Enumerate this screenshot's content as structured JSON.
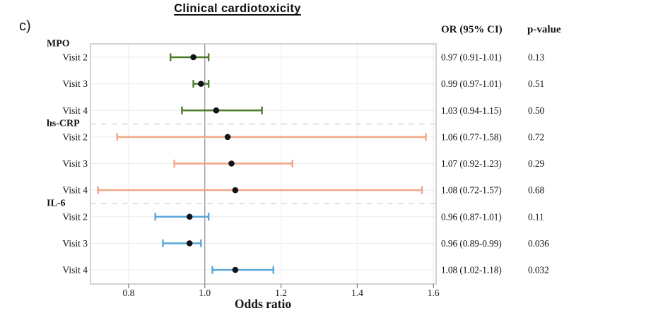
{
  "chart_data": {
    "type": "forest",
    "title": "Clinical cardiotoxicity",
    "panel_label": "c)",
    "xlabel": "Odds ratio",
    "x_tick_labels": [
      "0.8",
      "1.0",
      "1.2",
      "1.4",
      "1.6"
    ],
    "x_tick_values": [
      0.8,
      1.0,
      1.2,
      1.4,
      1.6
    ],
    "xlim": [
      0.7,
      1.607
    ],
    "reference_line": 1.0,
    "grid": true,
    "legend_position": "none",
    "columns": {
      "or_header": "OR (95% CI)",
      "p_header": "p-value"
    },
    "point_color": "#101418",
    "colors": {
      "frame": "#b3b3b3",
      "gridline": "#ebebeb",
      "reference": "#999999",
      "separator": "#d8d8d8"
    },
    "groups": [
      {
        "name": "MPO",
        "color": "#4e7b2c",
        "rows": [
          {
            "label": "Visit 2",
            "or": 0.97,
            "ci_low": 0.91,
            "ci_high": 1.01,
            "or_text": "0.97 (0.91-1.01)",
            "p_text": "0.13"
          },
          {
            "label": "Visit 3",
            "or": 0.99,
            "ci_low": 0.97,
            "ci_high": 1.01,
            "or_text": "0.99 (0.97-1.01)",
            "p_text": "0.51"
          },
          {
            "label": "Visit 4",
            "or": 1.03,
            "ci_low": 0.94,
            "ci_high": 1.15,
            "or_text": "1.03 (0.94-1.15)",
            "p_text": "0.50"
          }
        ]
      },
      {
        "name": "hs-CRP",
        "color": "#f0a689",
        "rows": [
          {
            "label": "Visit 2",
            "or": 1.06,
            "ci_low": 0.77,
            "ci_high": 1.58,
            "or_text": "1.06 (0.77-1.58)",
            "p_text": "0.72"
          },
          {
            "label": "Visit 3",
            "or": 1.07,
            "ci_low": 0.92,
            "ci_high": 1.23,
            "or_text": "1.07 (0.92-1.23)",
            "p_text": "0.29"
          },
          {
            "label": "Visit 4",
            "or": 1.08,
            "ci_low": 0.72,
            "ci_high": 1.57,
            "or_text": "1.08 (0.72-1.57)",
            "p_text": "0.68"
          }
        ]
      },
      {
        "name": "IL-6",
        "color": "#58a8d7",
        "rows": [
          {
            "label": "Visit 2",
            "or": 0.96,
            "ci_low": 0.87,
            "ci_high": 1.01,
            "or_text": "0.96 (0.87-1.01)",
            "p_text": "0.11"
          },
          {
            "label": "Visit 3",
            "or": 0.96,
            "ci_low": 0.89,
            "ci_high": 0.99,
            "or_text": "0.96 (0.89-0.99)",
            "p_text": "0.036"
          },
          {
            "label": "Visit 4",
            "or": 1.08,
            "ci_low": 1.02,
            "ci_high": 1.18,
            "or_text": "1.08 (1.02-1.18)",
            "p_text": "0.032"
          }
        ]
      }
    ]
  }
}
